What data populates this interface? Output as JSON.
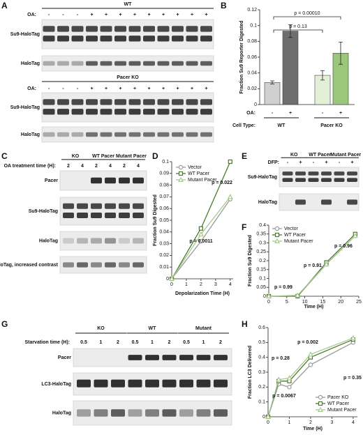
{
  "blots": {
    "A": {
      "panel": "A",
      "sections": [
        {
          "title": "WT",
          "condition_label": "OA:",
          "conditions": [
            "-",
            "-",
            "-",
            "+",
            "+",
            "+",
            "+",
            "+",
            "+",
            "+",
            "+",
            "+"
          ],
          "rows": [
            "Su9-HaloTag",
            "HaloTag"
          ]
        },
        {
          "title": "Pacer KO",
          "condition_label": "OA:",
          "conditions": [
            "-",
            "-",
            "-",
            "+",
            "+",
            "+",
            "+",
            "+",
            "+",
            "+",
            "+",
            "+"
          ],
          "rows": [
            "Su9-HaloTag",
            "HaloTag"
          ]
        }
      ]
    },
    "C": {
      "panel": "C",
      "groups": [
        "KO",
        "WT Pacer",
        "Mutant Pacer"
      ],
      "condition_label": "OA treatment time (H):",
      "conditions": [
        "2",
        "4",
        "2",
        "4",
        "2",
        "4"
      ],
      "rows": [
        "Pacer",
        "Su9-HaloTag",
        "HaloTag",
        "HaloTag, increased contrast"
      ]
    },
    "E": {
      "panel": "E",
      "groups": [
        "KO",
        "WT Pacer",
        "Mutant Pacer"
      ],
      "condition_label": "DFP:",
      "conditions": [
        "-",
        "+",
        "-",
        "+",
        "-",
        "+"
      ],
      "rows": [
        "Su9-HaloTag",
        "HaloTag"
      ]
    },
    "G": {
      "panel": "G",
      "groups": [
        "KO",
        "WT",
        "Mutant"
      ],
      "condition_label": "Starvation time (H):",
      "conditions": [
        "0.5",
        "1",
        "2",
        "0.5",
        "1",
        "2",
        "0.5",
        "1",
        "2"
      ],
      "rows": [
        "Pacer",
        "LC3-HaloTag",
        "HaloTag"
      ]
    }
  },
  "chart_data": [
    {
      "panel": "B",
      "type": "bar",
      "y_label": "Fraction Su9 Reporter Digested",
      "categories": [
        "-",
        "+",
        "-",
        "+"
      ],
      "category_label": "OA:",
      "groups": [
        "WT",
        "Pacer KO"
      ],
      "group_label": "Cell Type:",
      "values": [
        0.028,
        0.093,
        0.037,
        0.065
      ],
      "errors": [
        0.002,
        0.008,
        0.006,
        0.014
      ],
      "colors": [
        "#d0d0d0",
        "#6e6e6e",
        "#e4efd8",
        "#9bc77a"
      ],
      "ylim": [
        0,
        0.12
      ],
      "yticks": [
        0,
        0.02,
        0.04,
        0.06,
        0.08,
        0.1,
        0.12
      ],
      "annotations": [
        "p = 0.00010",
        "p = 0.13"
      ]
    },
    {
      "panel": "D",
      "type": "line",
      "x_label": "Depolarization Time (H)",
      "y_label": "Fraction Su9 Digested",
      "x": [
        0,
        2,
        4
      ],
      "series": [
        {
          "name": "Vector",
          "color": "#9a9a9a",
          "marker": "circle",
          "values": [
            0,
            0.032,
            0.068
          ]
        },
        {
          "name": "WT Pacer",
          "color": "#4a7a2a",
          "marker": "square",
          "values": [
            0,
            0.043,
            0.1
          ]
        },
        {
          "name": "Mutant Pacer",
          "color": "#a8c890",
          "marker": "triangle",
          "values": [
            0,
            0.038,
            0.07
          ]
        }
      ],
      "xlim": [
        0,
        4.2
      ],
      "xticks": [
        0,
        1,
        2,
        3,
        4
      ],
      "ylim": [
        0,
        0.1
      ],
      "yticks": [
        0,
        0.01,
        0.02,
        0.03,
        0.04,
        0.05,
        0.06,
        0.07,
        0.08,
        0.09,
        0.1
      ],
      "annotations": [
        "p = 0.0011",
        "p = 0.022"
      ]
    },
    {
      "panel": "F",
      "type": "line",
      "x_label": "Time (H)",
      "y_label": "Fraction Su9 Digested",
      "x": [
        0,
        8,
        16,
        24
      ],
      "series": [
        {
          "name": "Vector",
          "color": "#9a9a9a",
          "marker": "circle",
          "values": [
            0,
            0,
            0.18,
            0.34
          ]
        },
        {
          "name": "WT Pacer",
          "color": "#4a7a2a",
          "marker": "square",
          "values": [
            0,
            0,
            0.19,
            0.35
          ]
        },
        {
          "name": "Mutant Pacer",
          "color": "#a8c890",
          "marker": "triangle",
          "values": [
            0,
            0.005,
            0.18,
            0.34
          ]
        }
      ],
      "xlim": [
        0,
        25
      ],
      "xticks": [
        0,
        5,
        10,
        15,
        20,
        25
      ],
      "ylim": [
        0,
        0.4
      ],
      "yticks": [
        0,
        0.05,
        0.1,
        0.15,
        0.2,
        0.25,
        0.3,
        0.35,
        0.4
      ],
      "annotations": [
        "p = 0.99",
        "p = 0.91",
        "p = 0.96"
      ]
    },
    {
      "panel": "H",
      "type": "line",
      "x_label": "Time (H)",
      "y_label": "Fraction LC3 Delivered",
      "x": [
        0,
        0.5,
        1,
        2,
        4
      ],
      "series": [
        {
          "name": "Pacer KO",
          "color": "#9a9a9a",
          "marker": "circle",
          "values": [
            0,
            0.22,
            0.2,
            0.35,
            0.5
          ]
        },
        {
          "name": "WT Pacer",
          "color": "#4a7a2a",
          "marker": "square",
          "values": [
            0,
            0.24,
            0.24,
            0.4,
            0.52
          ]
        },
        {
          "name": "Mutant Pacer",
          "color": "#a8c890",
          "marker": "triangle",
          "values": [
            0,
            0.25,
            0.26,
            0.42,
            0.53
          ]
        }
      ],
      "xlim": [
        0,
        4.2
      ],
      "xticks": [
        0,
        1,
        2,
        3,
        4
      ],
      "ylim": [
        0,
        0.6
      ],
      "yticks": [
        0,
        0.1,
        0.2,
        0.3,
        0.4,
        0.5,
        0.6
      ],
      "annotations": [
        "p = 0.28",
        "p = 0.0067",
        "p = 0.002",
        "p = 0.35"
      ]
    }
  ]
}
